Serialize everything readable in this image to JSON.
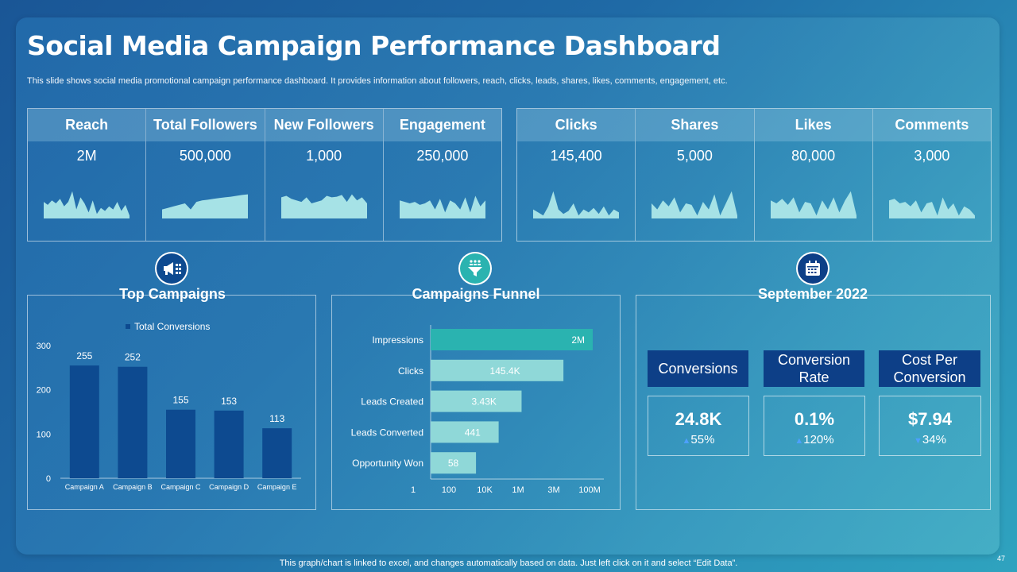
{
  "header": {
    "title": "Social Media Campaign Performance Dashboard",
    "subtitle": "This slide shows social media promotional campaign performance dashboard. It provides information about followers, reach, clicks, leads, shares, likes, comments, engagement, etc."
  },
  "kpis_left": [
    {
      "label": "Reach",
      "value": "2M",
      "trend": [
        0.55,
        0.45,
        0.6,
        0.5,
        0.65,
        0.4,
        0.55,
        0.9,
        0.3,
        0.7,
        0.5,
        0.2,
        0.6,
        0.15,
        0.35,
        0.25,
        0.4,
        0.3,
        0.55,
        0.25,
        0.45,
        0.1
      ]
    },
    {
      "label": "Total Followers",
      "value": "500,000",
      "trend": [
        0.3,
        0.35,
        0.4,
        0.45,
        0.5,
        0.3,
        0.55,
        0.6,
        0.62,
        0.65,
        0.68,
        0.7,
        0.72,
        0.75,
        0.78,
        0.8
      ]
    },
    {
      "label": "New Followers",
      "value": "1,000",
      "trend": [
        0.7,
        0.75,
        0.65,
        0.6,
        0.55,
        0.7,
        0.5,
        0.55,
        0.6,
        0.75,
        0.7,
        0.72,
        0.78,
        0.55,
        0.8,
        0.6,
        0.7,
        0.5
      ]
    },
    {
      "label": "Engagement",
      "value": "250,000",
      "trend": [
        0.6,
        0.55,
        0.5,
        0.55,
        0.45,
        0.5,
        0.6,
        0.3,
        0.65,
        0.2,
        0.6,
        0.5,
        0.3,
        0.7,
        0.2,
        0.75,
        0.4,
        0.6
      ]
    }
  ],
  "kpis_right": [
    {
      "label": "Clicks",
      "value": "145,400",
      "trend": [
        0.3,
        0.2,
        0.1,
        0.4,
        0.9,
        0.3,
        0.15,
        0.25,
        0.5,
        0.1,
        0.3,
        0.2,
        0.35,
        0.15,
        0.4,
        0.1,
        0.3,
        0.2
      ]
    },
    {
      "label": "Shares",
      "value": "5,000",
      "trend": [
        0.5,
        0.3,
        0.6,
        0.4,
        0.7,
        0.2,
        0.5,
        0.45,
        0.1,
        0.55,
        0.3,
        0.8,
        0.1,
        0.5,
        0.9,
        0.1
      ]
    },
    {
      "label": "Likes",
      "value": "80,000",
      "trend": [
        0.6,
        0.5,
        0.65,
        0.45,
        0.7,
        0.2,
        0.55,
        0.5,
        0.1,
        0.6,
        0.3,
        0.7,
        0.2,
        0.6,
        0.9,
        0.1
      ]
    },
    {
      "label": "Comments",
      "value": "3,000",
      "trend": [
        0.6,
        0.65,
        0.5,
        0.55,
        0.4,
        0.6,
        0.2,
        0.5,
        0.55,
        0.1,
        0.7,
        0.3,
        0.5,
        0.1,
        0.4,
        0.3,
        0.1
      ]
    }
  ],
  "sections": {
    "top_campaigns": "Top Campaigns",
    "funnel": "Campaigns Funnel",
    "month": "September 2022"
  },
  "icons": {
    "top_campaigns": "megaphone-icon",
    "funnel": "funnel-icon",
    "month": "calendar-icon"
  },
  "colors": {
    "bar": "#0d4a90",
    "funnel_dark": "#2ab3b0",
    "funnel_light": "#8fd8d8",
    "metric_head": "#0d3f87",
    "spark_fill": "#a6e2e6"
  },
  "chart_data": [
    {
      "type": "bar",
      "title": "Top Campaigns",
      "legend": "Total Conversions",
      "categories": [
        "Campaign A",
        "Campaign B",
        "Campaign C",
        "Campaign D",
        "Campaign E"
      ],
      "values": [
        255,
        252,
        155,
        153,
        113
      ],
      "yticks": [
        0,
        100,
        200,
        300
      ],
      "ylim": [
        0,
        300
      ]
    },
    {
      "type": "bar",
      "orientation": "horizontal",
      "title": "Campaigns Funnel",
      "categories": [
        "Impressions",
        "Clicks",
        "Leads Created",
        "Leads Converted",
        "Opportunity Won"
      ],
      "values": [
        2000000,
        145400,
        3430,
        441,
        58
      ],
      "labels": [
        "2M",
        "145.4K",
        "3.43K",
        "441",
        "58"
      ],
      "xscale": "log",
      "xticks": [
        "1",
        "100",
        "10K",
        "1M",
        "3M",
        "100M"
      ]
    }
  ],
  "metrics": [
    {
      "label": "Conversions",
      "value": "24.8K",
      "direction": "up",
      "change": "55%"
    },
    {
      "label": "Conversion Rate",
      "value": "0.1%",
      "direction": "up",
      "change": "120%"
    },
    {
      "label": "Cost Per Conversion",
      "value": "$7.94",
      "direction": "down",
      "change": "34%"
    }
  ],
  "footer": {
    "note": "This graph/chart is linked to excel,  and changes automatically based on data. Just left click on it and select “Edit Data”.",
    "page": "47"
  }
}
